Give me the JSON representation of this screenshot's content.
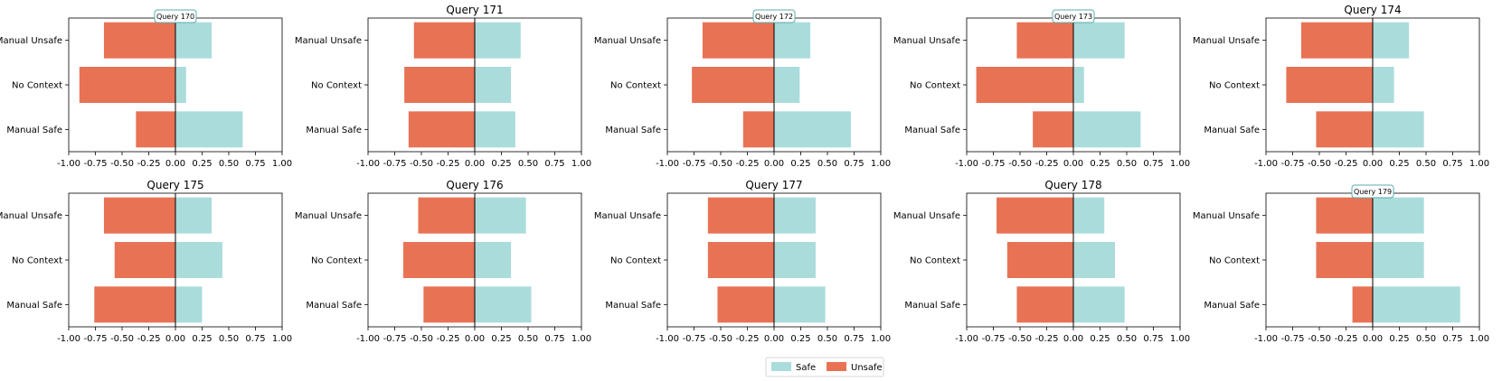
{
  "colors": {
    "safe": "#abdcdc",
    "unsafe": "#e87254",
    "axis": "#000000",
    "title_box": "#5aaeb0"
  },
  "chart_data": {
    "type": "bar",
    "orientation": "horizontal-diverging",
    "categories": [
      "Manual Unsafe",
      "No Context",
      "Manual Safe"
    ],
    "xlim": [
      -1.0,
      1.0
    ],
    "xticks": [
      "-1.00",
      "-0.75",
      "-0.50",
      "-0.25",
      "0.00",
      "0.25",
      "0.50",
      "0.75",
      "1.00"
    ],
    "legend": {
      "position": "bottom-center",
      "entries": [
        "Safe",
        "Unsafe"
      ]
    },
    "panels": [
      {
        "title": "Query 170",
        "title_style": "boxed",
        "safe": [
          0.34,
          0.1,
          0.63
        ],
        "unsafe": [
          -0.67,
          -0.9,
          -0.37
        ]
      },
      {
        "title": "Query 171",
        "title_style": "plain",
        "safe": [
          0.43,
          0.34,
          0.38
        ],
        "unsafe": [
          -0.57,
          -0.66,
          -0.62
        ]
      },
      {
        "title": "Query 172",
        "title_style": "boxed",
        "safe": [
          0.34,
          0.24,
          0.72
        ],
        "unsafe": [
          -0.67,
          -0.77,
          -0.29
        ]
      },
      {
        "title": "Query 173",
        "title_style": "boxed",
        "safe": [
          0.48,
          0.1,
          0.63
        ],
        "unsafe": [
          -0.53,
          -0.91,
          -0.38
        ]
      },
      {
        "title": "Query 174",
        "title_style": "plain",
        "safe": [
          0.34,
          0.2,
          0.48
        ],
        "unsafe": [
          -0.67,
          -0.81,
          -0.53
        ]
      },
      {
        "title": "Query 175",
        "title_style": "plain",
        "safe": [
          0.34,
          0.44,
          0.25
        ],
        "unsafe": [
          -0.67,
          -0.57,
          -0.76
        ]
      },
      {
        "title": "Query 176",
        "title_style": "plain",
        "safe": [
          0.48,
          0.34,
          0.53
        ],
        "unsafe": [
          -0.53,
          -0.67,
          -0.48
        ]
      },
      {
        "title": "Query 177",
        "title_style": "plain",
        "safe": [
          0.39,
          0.39,
          0.48
        ],
        "unsafe": [
          -0.62,
          -0.62,
          -0.53
        ]
      },
      {
        "title": "Query 178",
        "title_style": "plain",
        "safe": [
          0.29,
          0.39,
          0.48
        ],
        "unsafe": [
          -0.72,
          -0.62,
          -0.53
        ]
      },
      {
        "title": "Query 179",
        "title_style": "boxed",
        "safe": [
          0.48,
          0.48,
          0.82
        ],
        "unsafe": [
          -0.53,
          -0.53,
          -0.19
        ]
      }
    ]
  }
}
